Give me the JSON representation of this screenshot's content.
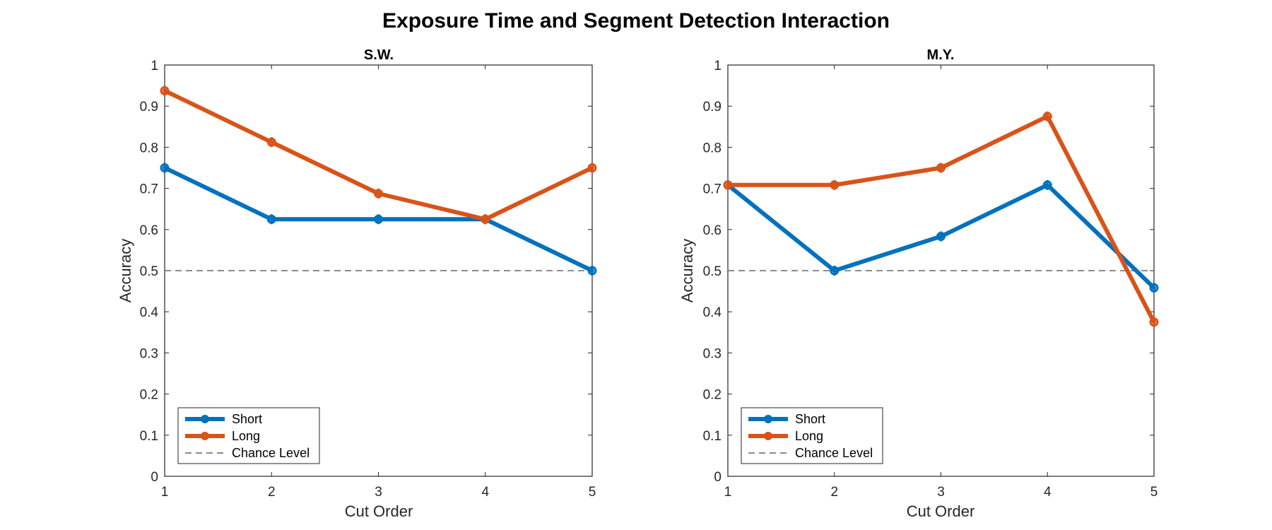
{
  "figure": {
    "title": "Exposure Time and Segment Detection Interaction"
  },
  "chart_data": [
    {
      "type": "line",
      "title": "S.W.",
      "xlabel": "Cut Order",
      "ylabel": "Accuracy",
      "x": [
        1,
        2,
        3,
        4,
        5
      ],
      "xlim": [
        1,
        5
      ],
      "ylim": [
        0,
        1
      ],
      "xticks": [
        "1",
        "2",
        "3",
        "4",
        "5"
      ],
      "yticks": [
        "0",
        "0.1",
        "0.2",
        "0.3",
        "0.4",
        "0.5",
        "0.6",
        "0.7",
        "0.8",
        "0.9",
        "1"
      ],
      "grid": false,
      "legend_location": "bottom-left",
      "series": [
        {
          "name": "Short",
          "color": "#0072BD",
          "values": [
            0.75,
            0.625,
            0.625,
            0.625,
            0.5
          ]
        },
        {
          "name": "Long",
          "color": "#D95319",
          "values": [
            0.9375,
            0.8125,
            0.6875,
            0.625,
            0.75
          ]
        }
      ],
      "reference_line": {
        "name": "Chance Level",
        "y": 0.5,
        "color": "#666666",
        "style": "dashed"
      }
    },
    {
      "type": "line",
      "title": "M.Y.",
      "xlabel": "Cut Order",
      "ylabel": "Accuracy",
      "x": [
        1,
        2,
        3,
        4,
        5
      ],
      "xlim": [
        1,
        5
      ],
      "ylim": [
        0,
        1
      ],
      "xticks": [
        "1",
        "2",
        "3",
        "4",
        "5"
      ],
      "yticks": [
        "0",
        "0.1",
        "0.2",
        "0.3",
        "0.4",
        "0.5",
        "0.6",
        "0.7",
        "0.8",
        "0.9",
        "1"
      ],
      "grid": false,
      "legend_location": "bottom-left",
      "series": [
        {
          "name": "Short",
          "color": "#0072BD",
          "values": [
            0.7083,
            0.5,
            0.5833,
            0.7083,
            0.4583
          ]
        },
        {
          "name": "Long",
          "color": "#D95319",
          "values": [
            0.7083,
            0.7083,
            0.75,
            0.875,
            0.375
          ]
        }
      ],
      "reference_line": {
        "name": "Chance Level",
        "y": 0.5,
        "color": "#666666",
        "style": "dashed"
      }
    }
  ]
}
